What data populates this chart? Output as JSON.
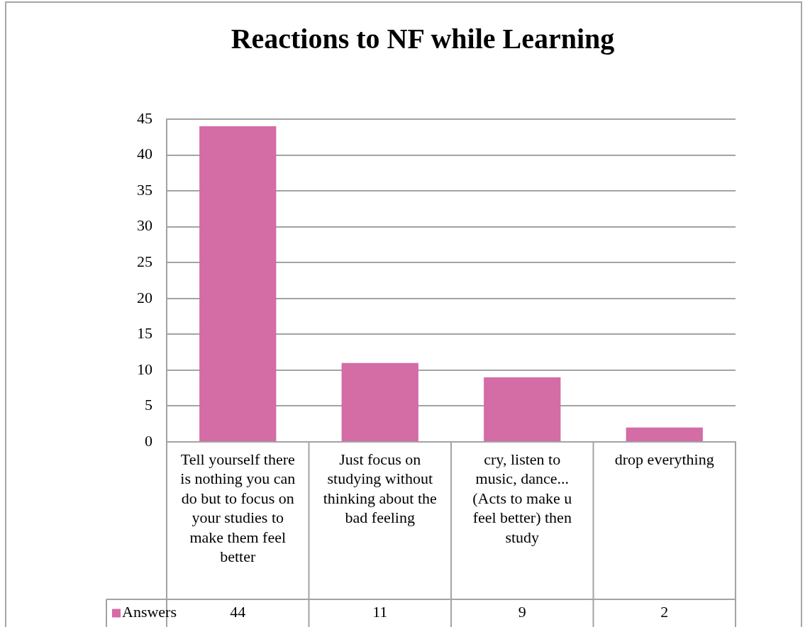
{
  "chart_data": {
    "type": "bar",
    "title": "Reactions to NF while Learning",
    "categories": [
      "Tell yourself there is nothing you can do but to focus on your studies to make them feel better",
      "Just focus on studying without thinking about the bad feeling",
      "cry, listen to music, dance... (Acts to make u feel better) then study",
      "drop everything"
    ],
    "series": [
      {
        "name": "Answers",
        "color": "#d46ca6",
        "values": [
          44,
          11,
          9,
          2
        ]
      }
    ],
    "ylim": [
      0,
      45
    ],
    "yticks": [
      0,
      5,
      10,
      15,
      20,
      25,
      30,
      35,
      40,
      45
    ],
    "grid": "y",
    "legend": "bottom left",
    "data_labels": true
  }
}
